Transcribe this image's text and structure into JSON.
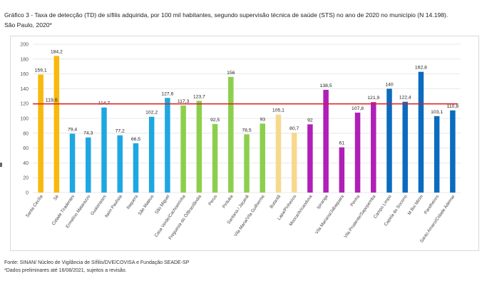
{
  "title_line1": "Gráfico 3 - Taxa de detecção (TD) de sífilis adquirida, por 100 mil habitantes, segundo supervisão técnica de saúde (STS) no ano de 2020 no município (N 14.198).",
  "title_line2": "São Paulo, 2020*",
  "footer_line1": "Fonte: SINAN/ Núcleo de Vigilância de Sífilis/DVE/COVISA e Fundação SEADE-SP",
  "footer_line2": "*Dados preliminares até 16/08/2021, sujeitos a revisão.",
  "chart_data": {
    "type": "bar",
    "title": "Taxa de detecção (TD) de sífilis adquirida, por 100 mil habitantes",
    "ylim": [
      0,
      200
    ],
    "yticks": [
      0,
      20,
      40,
      60,
      80,
      100,
      120,
      140,
      160,
      180,
      200
    ],
    "reference_line": {
      "value": 119.6,
      "label": "119,6",
      "color": "#e31a1c"
    },
    "categories": [
      "Santa Cecília",
      "Sé",
      "Cidade Tiradentes",
      "Ermelino Matarazzo",
      "Guaianases",
      "Itaim Paulista",
      "Itaquera",
      "São Mateus",
      "São Miguel",
      "Casa Verde/Cachoeirinha",
      "Freguesia do Ó/Brasilândia",
      "Perus",
      "Pirituba",
      "Santana / Jaçanã",
      "Vila Maria/Vila Guilherme",
      "Butantã",
      "Lapa/Pinheiros",
      "Mooca/Aricanduva",
      "Ipiranga",
      "Vila Mariana/Jabaquara",
      "Penha",
      "Vila Prudente/Sapopemba",
      "Campo Limpo",
      "Capela do Socorro",
      "M Boi Mirim",
      "Parelheiros",
      "Santo Amaro/Cidade Ademar"
    ],
    "values": [
      159.1,
      184.2,
      79.4,
      74.3,
      114.7,
      77.2,
      66.5,
      102.2,
      127.6,
      117.3,
      123.7,
      92.5,
      156,
      78.5,
      93,
      105.1,
      80.7,
      92,
      138.5,
      61,
      107.8,
      121.9,
      140,
      122.4,
      162.8,
      103.1,
      110.8
    ],
    "value_labels": [
      "159,1",
      "184,2",
      "79,4",
      "74,3",
      "114,7",
      "77,2",
      "66,5",
      "102,2",
      "127,6",
      "117,3",
      "123,7",
      "92,5",
      "156",
      "78,5",
      "93",
      "105,1",
      "80,7",
      "92",
      "138,5",
      "61",
      "107,8",
      "121,9",
      "140",
      "122,4",
      "162,8",
      "103,1",
      "110,8"
    ],
    "colors": [
      "#f9b90a",
      "#f9b90a",
      "#1ea7e1",
      "#1ea7e1",
      "#1ea7e1",
      "#1ea7e1",
      "#1ea7e1",
      "#1ea7e1",
      "#1ea7e1",
      "#8ccf4d",
      "#8ccf4d",
      "#8ccf4d",
      "#8ccf4d",
      "#8ccf4d",
      "#8ccf4d",
      "#f7d98e",
      "#f7d98e",
      "#b01fb8",
      "#b01fb8",
      "#b01fb8",
      "#b01fb8",
      "#b01fb8",
      "#0a6bbf",
      "#0a6bbf",
      "#0a6bbf",
      "#0a6bbf",
      "#0a6bbf"
    ]
  }
}
